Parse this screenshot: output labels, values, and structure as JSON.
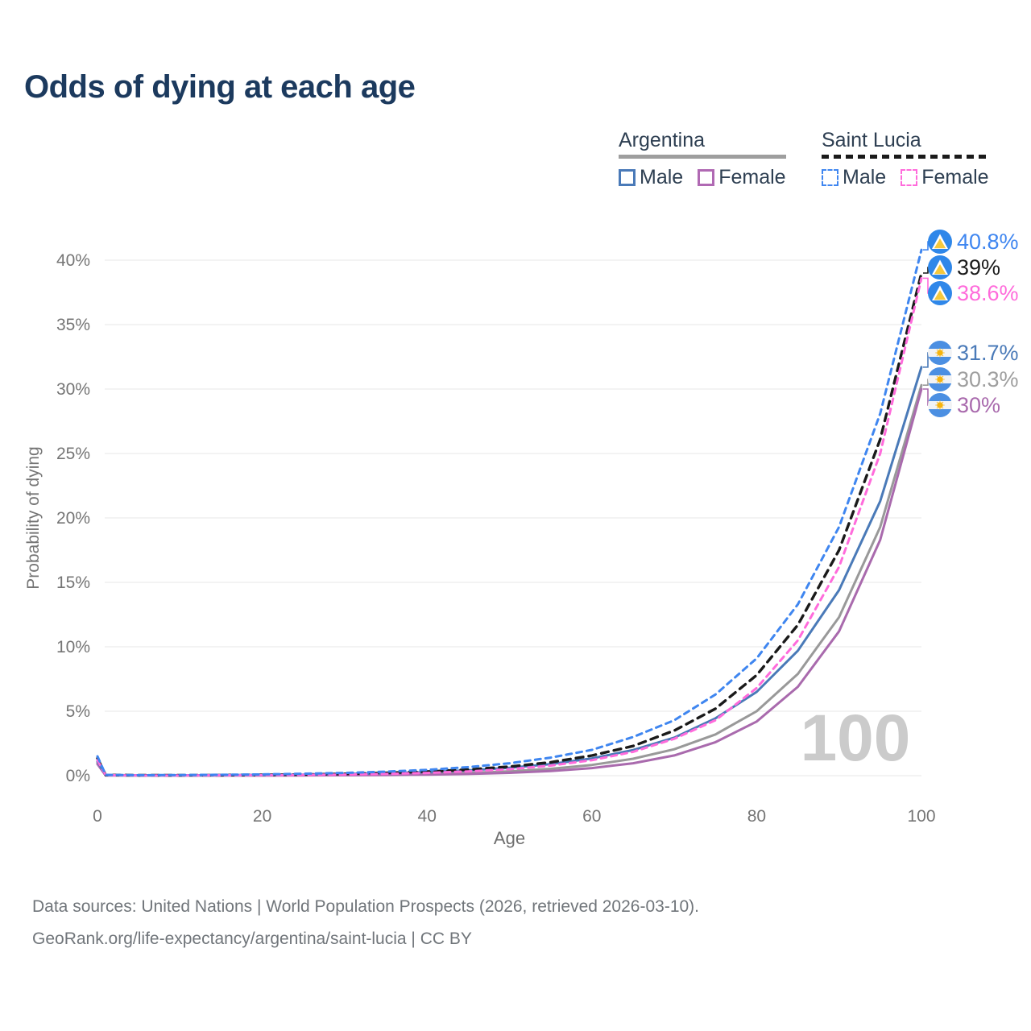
{
  "title": "Odds of dying at each age",
  "legend": {
    "groups": [
      {
        "label": "Argentina",
        "line_style": "solid",
        "underline_color": "#9e9e9e",
        "items": [
          {
            "label": "Male",
            "color": "#4a7ab8",
            "dashed": false
          },
          {
            "label": "Female",
            "color": "#b069b3",
            "dashed": false
          }
        ]
      },
      {
        "label": "Saint Lucia",
        "line_style": "dashed",
        "underline_color": "#1a1a1a",
        "items": [
          {
            "label": "Male",
            "color": "#3f86f0",
            "dashed": true
          },
          {
            "label": "Female",
            "color": "#ff6bdb",
            "dashed": true
          }
        ]
      }
    ]
  },
  "chart_data": {
    "type": "line",
    "title": "Odds of dying at each age",
    "xlabel": "Age",
    "ylabel": "Probability of dying",
    "xlim": [
      0,
      100
    ],
    "ylim_percent": [
      0,
      42
    ],
    "xticks": [
      0,
      20,
      40,
      60,
      80,
      100
    ],
    "yticks_percent": [
      0,
      5,
      10,
      15,
      20,
      25,
      30,
      35,
      40
    ],
    "grid": true,
    "legend_position": "top-right",
    "watermark": "100",
    "x": [
      0,
      1,
      5,
      10,
      15,
      20,
      25,
      30,
      35,
      40,
      45,
      50,
      55,
      60,
      65,
      70,
      75,
      80,
      85,
      90,
      95,
      100
    ],
    "series": [
      {
        "name": "Saint Lucia Male",
        "country": "Saint Lucia",
        "sex": "Male",
        "style": "dashed",
        "color": "#3f86f0",
        "label_color": "#3f86f0",
        "flag": "saint-lucia",
        "end_label": "40.8%",
        "values": [
          1.5,
          0.06,
          0.04,
          0.05,
          0.07,
          0.1,
          0.15,
          0.21,
          0.31,
          0.45,
          0.66,
          0.96,
          1.4,
          2.0,
          3.0,
          4.3,
          6.3,
          9.1,
          13.3,
          19.3,
          28.1,
          40.8
        ]
      },
      {
        "name": "Saint Lucia Combined",
        "country": "Saint Lucia",
        "sex": "Both",
        "style": "dashed",
        "color": "#1a1a1a",
        "label_color": "#1a1a1a",
        "flag": "saint-lucia",
        "end_label": "39%",
        "values": [
          1.35,
          0.05,
          0.03,
          0.03,
          0.04,
          0.06,
          0.09,
          0.14,
          0.21,
          0.31,
          0.47,
          0.7,
          1.04,
          1.56,
          2.3,
          3.5,
          5.2,
          7.8,
          11.7,
          17.5,
          26.1,
          39.0
        ]
      },
      {
        "name": "Saint Lucia Female",
        "country": "Saint Lucia",
        "sex": "Female",
        "style": "dashed",
        "color": "#ff6bdb",
        "label_color": "#ff6bdb",
        "flag": "saint-lucia",
        "end_label": "38.6%",
        "values": [
          1.2,
          0.04,
          0.02,
          0.02,
          0.03,
          0.04,
          0.06,
          0.09,
          0.14,
          0.21,
          0.33,
          0.5,
          0.78,
          1.2,
          1.85,
          2.86,
          4.3,
          6.8,
          10.5,
          16.2,
          25.0,
          38.6
        ]
      },
      {
        "name": "Argentina Male",
        "country": "Argentina",
        "sex": "Male",
        "style": "solid",
        "color": "#4a7ab8",
        "label_color": "#4a7ab8",
        "flag": "argentina",
        "end_label": "31.7%",
        "values": [
          1.1,
          0.05,
          0.03,
          0.03,
          0.04,
          0.06,
          0.08,
          0.13,
          0.19,
          0.28,
          0.41,
          0.61,
          0.9,
          1.34,
          1.99,
          2.95,
          4.45,
          6.5,
          9.7,
          14.4,
          21.3,
          31.7
        ]
      },
      {
        "name": "Argentina Combined",
        "country": "Argentina",
        "sex": "Both",
        "style": "solid",
        "color": "#999999",
        "label_color": "#9e9e9e",
        "flag": "argentina",
        "end_label": "30.3%",
        "values": [
          1.0,
          0.03,
          0.02,
          0.01,
          0.02,
          0.02,
          0.04,
          0.06,
          0.09,
          0.14,
          0.22,
          0.34,
          0.53,
          0.83,
          1.31,
          2.05,
          3.2,
          5.0,
          7.9,
          12.3,
          19.3,
          30.3
        ]
      },
      {
        "name": "Argentina Female",
        "country": "Argentina",
        "sex": "Female",
        "style": "solid",
        "color": "#a96aad",
        "label_color": "#a96aad",
        "flag": "argentina",
        "end_label": "30%",
        "values": [
          0.9,
          0.02,
          0.01,
          0.01,
          0.01,
          0.01,
          0.02,
          0.03,
          0.05,
          0.08,
          0.13,
          0.22,
          0.36,
          0.59,
          0.96,
          1.57,
          2.6,
          4.2,
          6.9,
          11.2,
          18.3,
          30.0
        ]
      }
    ],
    "flag_colors": {
      "argentina_band": "#4b8fe2",
      "argentina_white": "#f2f3f5",
      "argentina_sun": "#f6b40e",
      "saint_lucia_field": "#2f87e9",
      "saint_lucia_triangle_outline": "#ffffff",
      "saint_lucia_triangle": "#f5c83c"
    },
    "style": {
      "grid_color": "#ececec",
      "tick_color": "#757575",
      "watermark_color": "#cbcbcb",
      "title_color": "#1c3a5e"
    }
  },
  "footer": {
    "line1": "Data sources: United Nations | World Population Prospects (2026, retrieved 2026-03-10).",
    "line2": "GeoRank.org/life-expectancy/argentina/saint-lucia | CC BY"
  }
}
